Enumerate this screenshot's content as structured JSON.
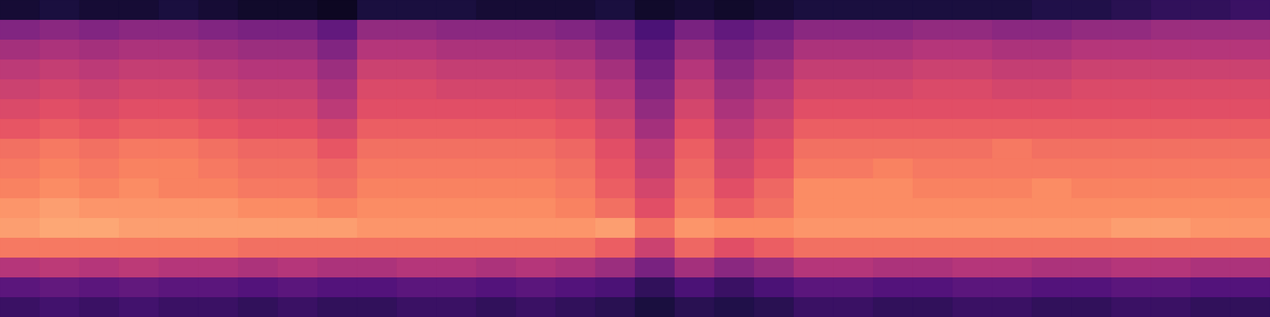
{
  "chart_data": {
    "type": "heatmap",
    "tick_labels": false,
    "grid": false,
    "color_range": [
      0,
      100
    ],
    "cells": [
      [
        10,
        12,
        10,
        10,
        12,
        10,
        8,
        8,
        6,
        12,
        12,
        12,
        10,
        10,
        10,
        12,
        8,
        10,
        8,
        10,
        12,
        12,
        12,
        12,
        12,
        12,
        14,
        14,
        16,
        18,
        18,
        20
      ],
      [
        38,
        40,
        38,
        40,
        40,
        38,
        36,
        36,
        30,
        42,
        42,
        40,
        40,
        40,
        38,
        34,
        24,
        36,
        30,
        34,
        40,
        40,
        40,
        42,
        42,
        40,
        40,
        42,
        42,
        44,
        44,
        44
      ],
      [
        46,
        48,
        46,
        48,
        48,
        46,
        44,
        44,
        38,
        50,
        50,
        48,
        48,
        48,
        46,
        40,
        30,
        44,
        36,
        40,
        48,
        48,
        48,
        50,
        50,
        48,
        48,
        50,
        50,
        50,
        50,
        50
      ],
      [
        52,
        54,
        52,
        54,
        54,
        52,
        50,
        50,
        44,
        56,
        56,
        54,
        54,
        54,
        52,
        46,
        34,
        50,
        40,
        46,
        54,
        54,
        54,
        56,
        56,
        54,
        54,
        56,
        56,
        56,
        56,
        56
      ],
      [
        56,
        58,
        56,
        58,
        58,
        56,
        54,
        54,
        48,
        60,
        60,
        58,
        58,
        58,
        56,
        50,
        38,
        54,
        44,
        50,
        58,
        58,
        58,
        60,
        60,
        58,
        58,
        60,
        60,
        60,
        60,
        60
      ],
      [
        60,
        62,
        60,
        62,
        62,
        60,
        58,
        58,
        52,
        62,
        62,
        62,
        62,
        62,
        60,
        54,
        42,
        58,
        48,
        54,
        62,
        62,
        62,
        62,
        62,
        62,
        62,
        62,
        62,
        62,
        62,
        62
      ],
      [
        64,
        66,
        64,
        66,
        66,
        64,
        62,
        62,
        58,
        66,
        66,
        66,
        66,
        66,
        64,
        58,
        46,
        62,
        52,
        58,
        66,
        66,
        66,
        66,
        66,
        66,
        66,
        66,
        66,
        66,
        66,
        66
      ],
      [
        70,
        72,
        70,
        72,
        72,
        70,
        68,
        68,
        64,
        70,
        70,
        70,
        70,
        70,
        68,
        62,
        52,
        66,
        56,
        62,
        70,
        70,
        70,
        70,
        70,
        72,
        70,
        70,
        70,
        70,
        70,
        70
      ],
      [
        72,
        74,
        72,
        74,
        74,
        72,
        70,
        70,
        68,
        72,
        72,
        72,
        72,
        72,
        70,
        64,
        54,
        68,
        58,
        64,
        72,
        72,
        74,
        72,
        72,
        72,
        72,
        72,
        72,
        72,
        72,
        72
      ],
      [
        74,
        76,
        74,
        76,
        74,
        74,
        72,
        72,
        70,
        74,
        74,
        74,
        74,
        74,
        72,
        66,
        58,
        70,
        62,
        68,
        76,
        76,
        76,
        74,
        74,
        74,
        76,
        74,
        74,
        74,
        74,
        74
      ],
      [
        78,
        80,
        78,
        78,
        78,
        78,
        76,
        76,
        74,
        76,
        76,
        76,
        76,
        76,
        74,
        70,
        62,
        72,
        66,
        70,
        76,
        76,
        76,
        76,
        76,
        76,
        76,
        76,
        76,
        76,
        76,
        76
      ],
      [
        80,
        82,
        82,
        80,
        80,
        80,
        80,
        80,
        80,
        78,
        78,
        78,
        78,
        78,
        78,
        80,
        70,
        78,
        76,
        76,
        78,
        78,
        78,
        78,
        78,
        78,
        78,
        78,
        80,
        80,
        78,
        78
      ],
      [
        72,
        72,
        72,
        72,
        72,
        72,
        70,
        70,
        70,
        70,
        70,
        70,
        70,
        70,
        70,
        66,
        56,
        68,
        62,
        66,
        70,
        70,
        70,
        70,
        70,
        70,
        70,
        70,
        70,
        70,
        70,
        70
      ],
      [
        50,
        52,
        50,
        52,
        50,
        50,
        48,
        50,
        48,
        48,
        50,
        50,
        48,
        50,
        48,
        44,
        36,
        46,
        40,
        44,
        50,
        50,
        48,
        48,
        50,
        50,
        48,
        48,
        50,
        50,
        48,
        48
      ],
      [
        28,
        30,
        28,
        30,
        28,
        28,
        26,
        28,
        26,
        26,
        28,
        28,
        26,
        28,
        26,
        24,
        18,
        24,
        20,
        24,
        28,
        28,
        26,
        26,
        28,
        28,
        26,
        26,
        28,
        28,
        26,
        26
      ],
      [
        20,
        22,
        20,
        22,
        20,
        20,
        18,
        20,
        18,
        18,
        20,
        20,
        18,
        20,
        18,
        16,
        12,
        16,
        14,
        16,
        20,
        20,
        18,
        18,
        20,
        20,
        18,
        18,
        20,
        20,
        18,
        18
      ]
    ]
  }
}
